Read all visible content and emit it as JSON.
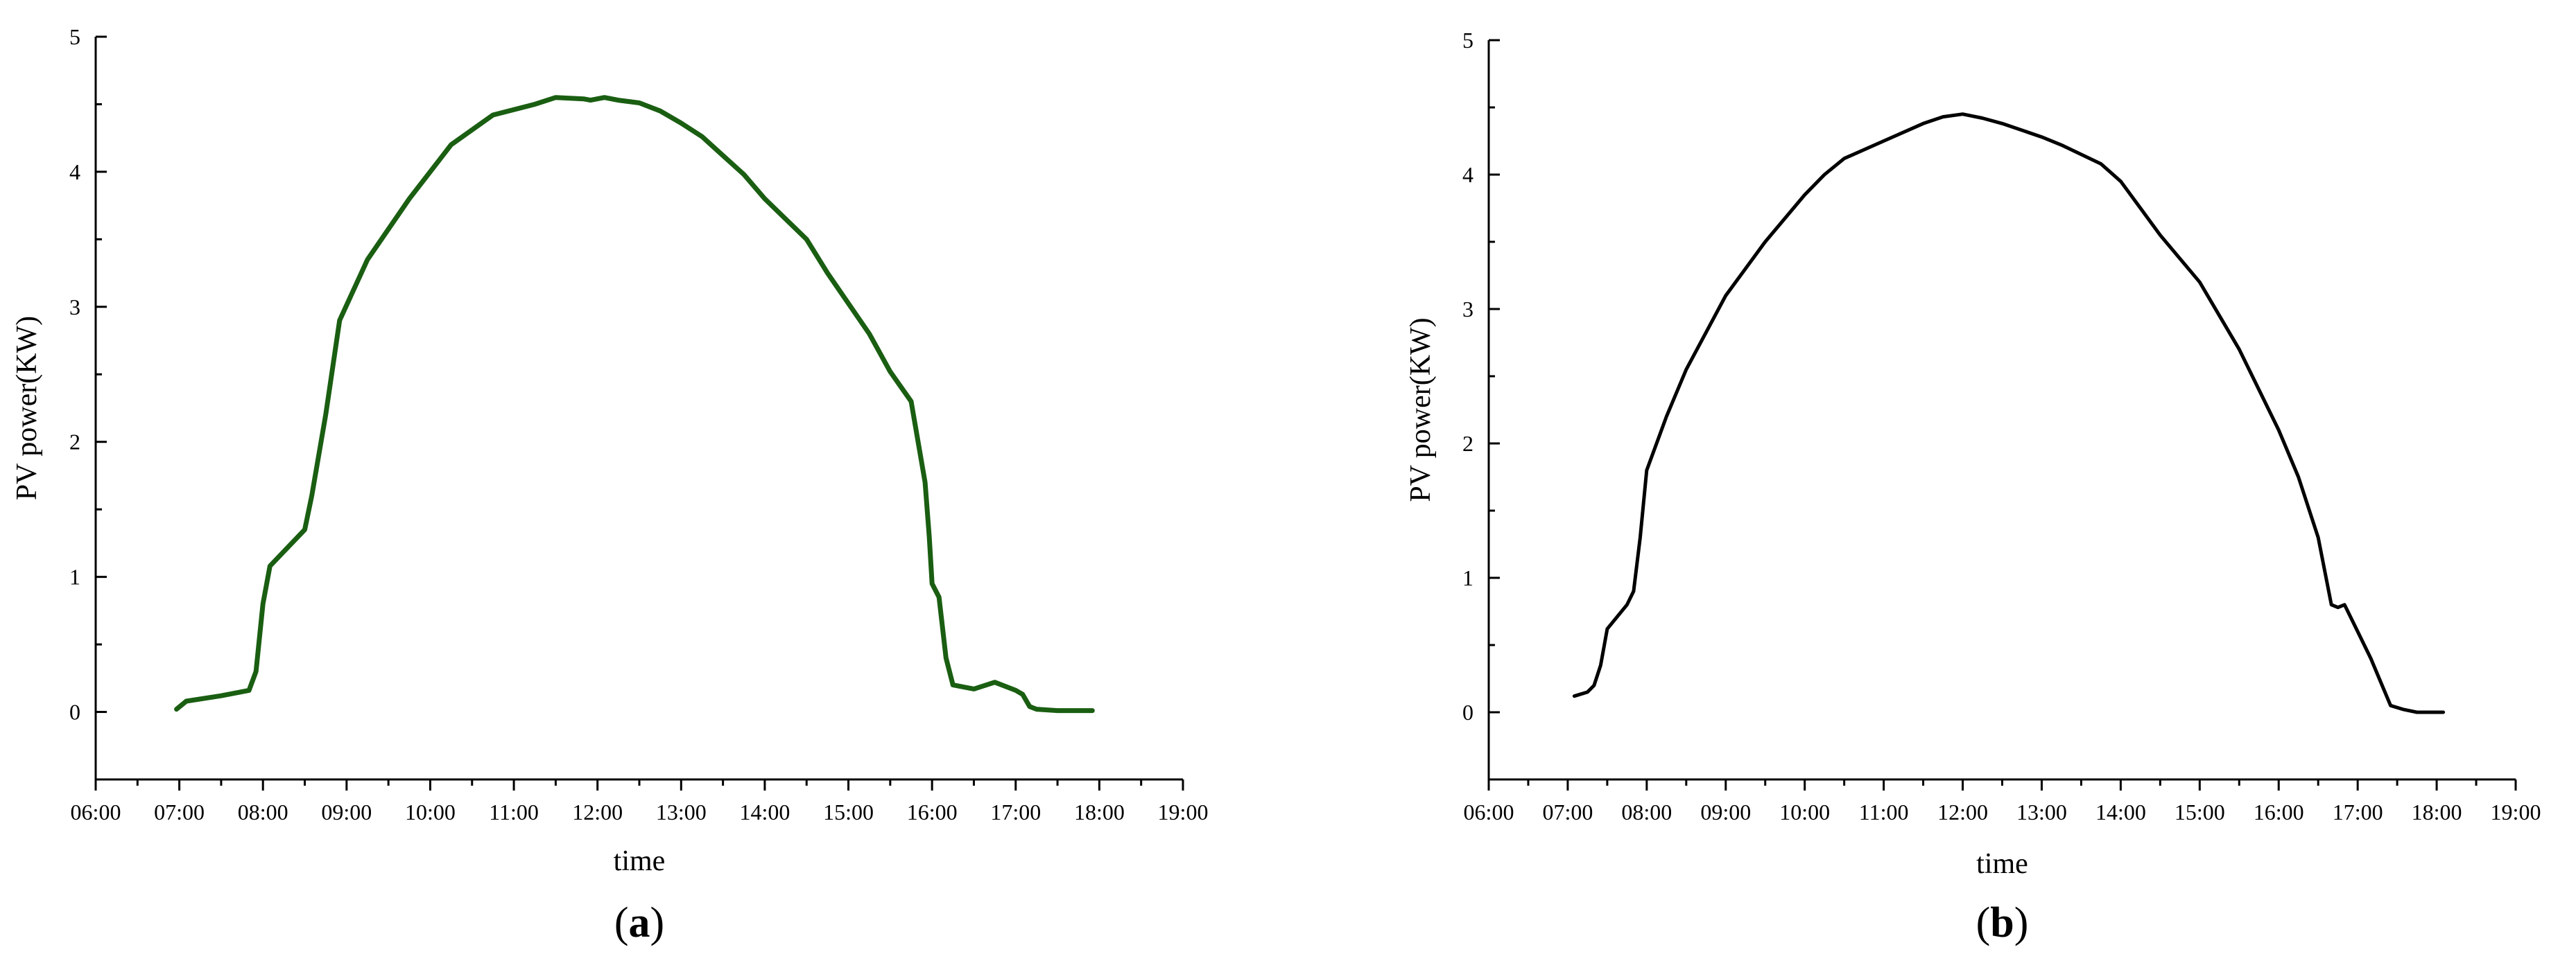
{
  "chart_data": [
    {
      "type": "line",
      "panel_label": "a",
      "xlabel": "time",
      "ylabel": "PV power(KW)",
      "xlim": [
        "06:00",
        "19:00"
      ],
      "ylim": [
        -0.5,
        5
      ],
      "x_ticks": [
        "06:00",
        "07:00",
        "08:00",
        "09:00",
        "10:00",
        "11:00",
        "12:00",
        "13:00",
        "14:00",
        "15:00",
        "16:00",
        "17:00",
        "18:00",
        "19:00"
      ],
      "y_ticks": [
        0,
        1,
        2,
        3,
        4,
        5
      ],
      "grid": false,
      "color": "#1a5e12",
      "series": [
        {
          "x": [
            "06:58",
            "07:05",
            "07:30",
            "07:50",
            "07:55",
            "08:00",
            "08:05",
            "08:30",
            "08:35",
            "08:45",
            "08:55",
            "09:15",
            "09:45",
            "10:15",
            "10:45",
            "11:15",
            "11:30",
            "11:50",
            "11:55",
            "12:05",
            "12:15",
            "12:30",
            "12:45",
            "13:00",
            "13:15",
            "13:30",
            "13:45",
            "14:00",
            "14:30",
            "14:45",
            "15:15",
            "15:30",
            "15:45",
            "15:55",
            "15:58",
            "16:00",
            "16:05",
            "16:10",
            "16:15",
            "16:30",
            "16:45",
            "17:00",
            "17:05",
            "17:10",
            "17:15",
            "17:30",
            "17:45",
            "17:55"
          ],
          "values": [
            0.02,
            0.08,
            0.12,
            0.16,
            0.3,
            0.8,
            1.08,
            1.35,
            1.6,
            2.2,
            2.9,
            3.35,
            3.8,
            4.2,
            4.42,
            4.5,
            4.55,
            4.54,
            4.53,
            4.55,
            4.53,
            4.51,
            4.45,
            4.36,
            4.26,
            4.12,
            3.98,
            3.8,
            3.5,
            3.25,
            2.8,
            2.52,
            2.3,
            1.7,
            1.3,
            0.95,
            0.85,
            0.4,
            0.2,
            0.17,
            0.22,
            0.16,
            0.13,
            0.04,
            0.02,
            0.01,
            0.01,
            0.01
          ]
        }
      ]
    },
    {
      "type": "line",
      "panel_label": "b",
      "xlabel": "time",
      "ylabel": "PV power(KW)",
      "xlim": [
        "06:00",
        "19:00"
      ],
      "ylim": [
        -0.5,
        5
      ],
      "x_ticks": [
        "06:00",
        "07:00",
        "08:00",
        "09:00",
        "10:00",
        "11:00",
        "12:00",
        "13:00",
        "14:00",
        "15:00",
        "16:00",
        "17:00",
        "18:00",
        "19:00"
      ],
      "y_ticks": [
        0,
        1,
        2,
        3,
        4,
        5
      ],
      "grid": false,
      "color": "#000000",
      "series": [
        {
          "x": [
            "07:05",
            "07:15",
            "07:20",
            "07:25",
            "07:30",
            "07:45",
            "07:50",
            "07:55",
            "08:00",
            "08:15",
            "08:30",
            "09:00",
            "09:30",
            "10:00",
            "10:15",
            "10:30",
            "11:00",
            "11:30",
            "11:45",
            "12:00",
            "12:15",
            "12:30",
            "13:00",
            "13:15",
            "13:30",
            "13:45",
            "14:00",
            "14:15",
            "14:30",
            "15:00",
            "15:30",
            "16:00",
            "16:15",
            "16:30",
            "16:40",
            "16:45",
            "16:50",
            "17:00",
            "17:10",
            "17:25",
            "17:35",
            "17:45",
            "18:05"
          ],
          "values": [
            0.12,
            0.15,
            0.2,
            0.35,
            0.62,
            0.8,
            0.9,
            1.3,
            1.8,
            2.2,
            2.55,
            3.1,
            3.5,
            3.85,
            4.0,
            4.12,
            4.25,
            4.38,
            4.43,
            4.45,
            4.42,
            4.38,
            4.28,
            4.22,
            4.15,
            4.08,
            3.95,
            3.75,
            3.55,
            3.2,
            2.7,
            2.1,
            1.75,
            1.3,
            0.8,
            0.78,
            0.8,
            0.6,
            0.4,
            0.05,
            0.02,
            0.0,
            0.0
          ]
        }
      ]
    }
  ]
}
